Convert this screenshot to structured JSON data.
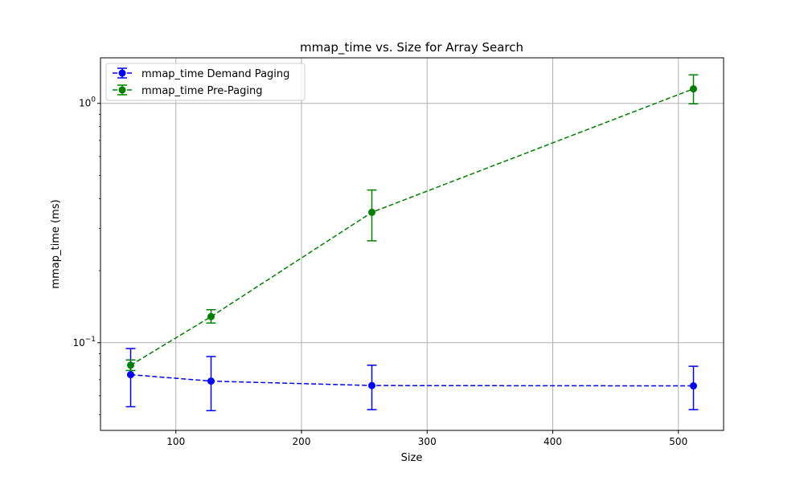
{
  "chart_data": {
    "type": "line",
    "title": "mmap_time vs. Size for Array Search",
    "xlabel": "Size",
    "ylabel": "mmap_time (ms)",
    "xlim": [
      40,
      536
    ],
    "ylim": [
      0.043,
      1.55
    ],
    "yscale": "log",
    "grid": true,
    "legend_position": "upper-left",
    "x_ticks": [
      {
        "value": 100,
        "label": "100"
      },
      {
        "value": 200,
        "label": "200"
      },
      {
        "value": 300,
        "label": "300"
      },
      {
        "value": 400,
        "label": "400"
      },
      {
        "value": 500,
        "label": "500"
      }
    ],
    "y_ticks": [
      {
        "value": 0.1,
        "base": "10",
        "exponent": "−1"
      },
      {
        "value": 1,
        "base": "10",
        "exponent": "0"
      }
    ],
    "x": [
      64,
      128,
      256,
      512
    ],
    "series": [
      {
        "name": "mmap_time Demand Paging",
        "color": "#0000ff",
        "values": [
          0.0735,
          0.0691,
          0.0662,
          0.066
        ],
        "err_low": [
          0.054,
          0.052,
          0.0525,
          0.0525
        ],
        "err_high": [
          0.0945,
          0.0875,
          0.0805,
          0.0797
        ]
      },
      {
        "name": "mmap_time Pre-Paging",
        "color": "#008000",
        "values": [
          0.0805,
          0.1285,
          0.3505,
          1.15
        ],
        "err_low": [
          0.0765,
          0.1208,
          0.2665,
          0.996
        ],
        "err_high": [
          0.0847,
          0.1373,
          0.4345,
          1.316
        ]
      }
    ]
  }
}
